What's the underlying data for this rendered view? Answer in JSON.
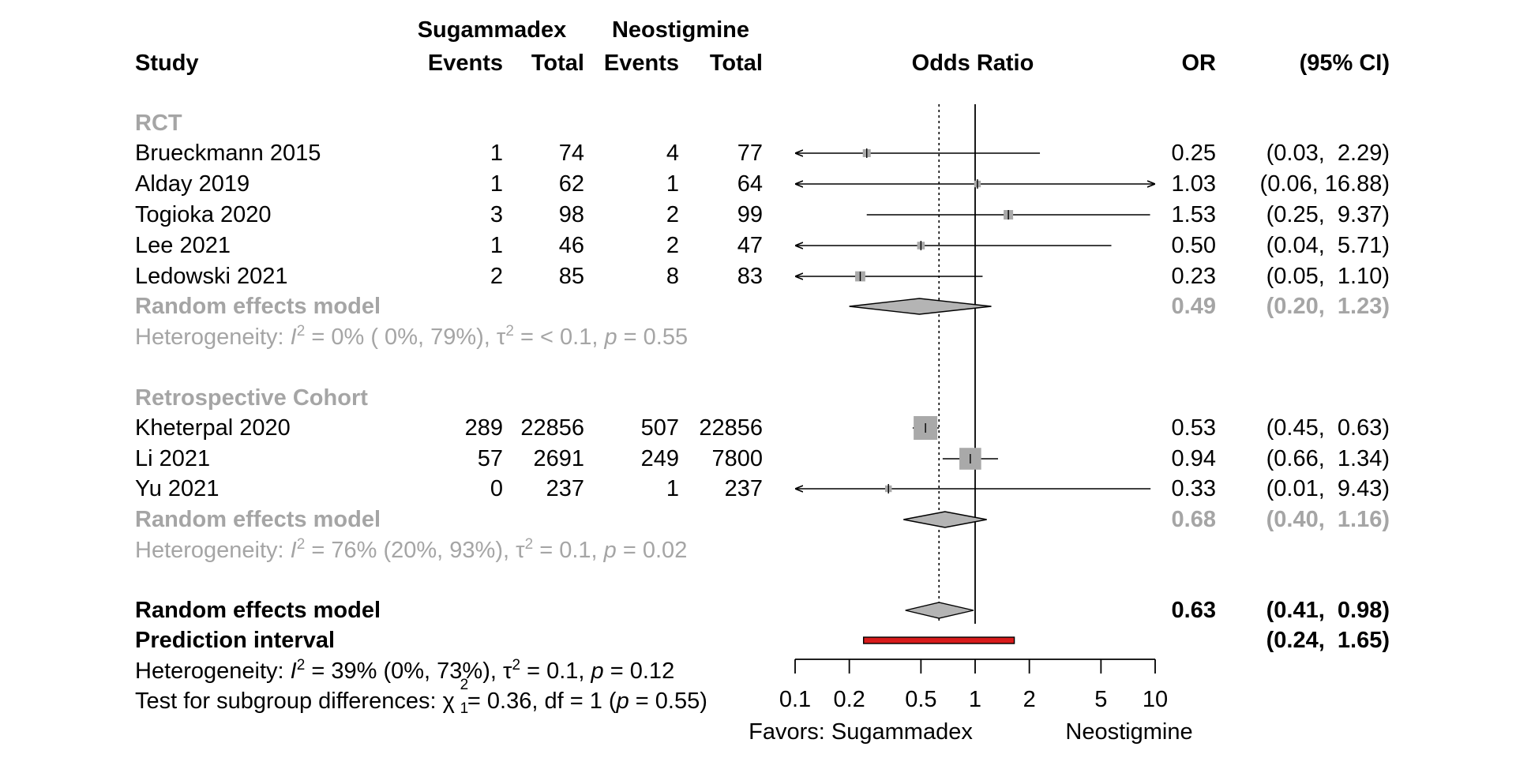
{
  "header": {
    "study": "Study",
    "group1": "Sugammadex",
    "group2": "Neostigmine",
    "events": "Events",
    "total": "Total",
    "odds_ratio": "Odds Ratio",
    "or": "OR",
    "ci": "(95% CI)"
  },
  "subgroups": [
    {
      "name": "RCT",
      "model_label": "Random effects model",
      "heterogeneity": {
        "prefix": "Heterogeneity: ",
        "I2": "0% ( 0%, 79%)",
        "tau2": "< 0.1",
        "p": "0.55"
      }
    },
    {
      "name": "Retrospective Cohort",
      "model_label": "Random effects model",
      "heterogeneity": {
        "prefix": "Heterogeneity: ",
        "I2": "76% (20%, 93%)",
        "tau2": "0.1",
        "p": "0.02"
      }
    }
  ],
  "overall": {
    "model_label": "Random effects model",
    "or_text": "0.63",
    "ci_text": "(0.41,  0.98)",
    "prediction_label": "Prediction interval",
    "prediction_ci_text": "(0.24,  1.65)",
    "heterogeneity": {
      "prefix": "Heterogeneity: ",
      "I2": "39% (0%, 73%)",
      "tau2": "0.1",
      "p": "0.12"
    },
    "subgroup_test": {
      "prefix": "Test for subgroup differences: ",
      "chi2": "0.36",
      "df": "1",
      "p": "0.55"
    }
  },
  "axis": {
    "favors_left": "Favors: Sugammadex",
    "favors_right": "Neostigmine"
  },
  "colors": {
    "subgroup_text": "#a5a5a5",
    "study_box": "#a9a9a9",
    "diamond_fill": "#b4b4b4",
    "prediction_fill": "#d81b1b"
  },
  "chart_data": {
    "type": "forest",
    "title": "Odds Ratio",
    "xscale": "log",
    "xlim": [
      0.1,
      10
    ],
    "xticks": [
      0.1,
      0.2,
      0.5,
      1,
      2,
      5,
      10
    ],
    "xtick_labels": [
      "0.1",
      "0.2",
      "0.5",
      "1",
      "2",
      "5",
      "10"
    ],
    "null_value": 1,
    "overall_dotted_line": 0.63,
    "studies": [
      {
        "group": 0,
        "name": "Brueckmann 2015",
        "e1": "1",
        "n1": "74",
        "e2": "4",
        "n2": "77",
        "or": 0.25,
        "lo": 0.03,
        "hi": 2.29,
        "or_text": "0.25",
        "ci_text": "(0.03,  2.29)",
        "weight": 0.1
      },
      {
        "group": 0,
        "name": "Alday 2019",
        "e1": "1",
        "n1": "62",
        "e2": "1",
        "n2": "64",
        "or": 1.03,
        "lo": 0.06,
        "hi": 16.88,
        "or_text": "1.03",
        "ci_text": "(0.06, 16.88)",
        "weight": 0.06
      },
      {
        "group": 0,
        "name": "Togioka 2020",
        "e1": "3",
        "n1": "98",
        "e2": "2",
        "n2": "99",
        "or": 1.53,
        "lo": 0.25,
        "hi": 9.37,
        "or_text": "1.53",
        "ci_text": "(0.25,  9.37)",
        "weight": 0.15
      },
      {
        "group": 0,
        "name": "Lee 2021",
        "e1": "1",
        "n1": "46",
        "e2": "2",
        "n2": "47",
        "or": 0.5,
        "lo": 0.04,
        "hi": 5.71,
        "or_text": "0.50",
        "ci_text": "(0.04,  5.71)",
        "weight": 0.09
      },
      {
        "group": 0,
        "name": "Ledowski 2021",
        "e1": "2",
        "n1": "85",
        "e2": "8",
        "n2": "83",
        "or": 0.23,
        "lo": 0.05,
        "hi": 1.1,
        "or_text": "0.23",
        "ci_text": "(0.05,  1.10)",
        "weight": 0.17
      },
      {
        "group": 1,
        "name": "Kheterpal 2020",
        "e1": "289",
        "n1": "22856",
        "e2": "507",
        "n2": "22856",
        "or": 0.53,
        "lo": 0.45,
        "hi": 0.63,
        "or_text": "0.53",
        "ci_text": "(0.45,  0.63)",
        "weight": 0.6
      },
      {
        "group": 1,
        "name": "Li 2021",
        "e1": "57",
        "n1": "2691",
        "e2": "249",
        "n2": "7800",
        "or": 0.94,
        "lo": 0.66,
        "hi": 1.34,
        "or_text": "0.94",
        "ci_text": "(0.66,  1.34)",
        "weight": 0.54
      },
      {
        "group": 1,
        "name": "Yu 2021",
        "e1": "0",
        "n1": "237",
        "e2": "1",
        "n2": "237",
        "or": 0.33,
        "lo": 0.01,
        "hi": 9.43,
        "or_text": "0.33",
        "ci_text": "(0.01,  9.43)",
        "weight": 0.06
      }
    ],
    "subgroup_summaries": [
      {
        "group": 0,
        "or": 0.49,
        "lo": 0.2,
        "hi": 1.23,
        "or_text": "0.49",
        "ci_text": "(0.20,  1.23)"
      },
      {
        "group": 1,
        "or": 0.68,
        "lo": 0.4,
        "hi": 1.16,
        "or_text": "0.68",
        "ci_text": "(0.40,  1.16)"
      }
    ],
    "overall_summary": {
      "or": 0.63,
      "lo": 0.41,
      "hi": 0.98
    },
    "prediction_interval": {
      "lo": 0.24,
      "hi": 1.65
    }
  }
}
